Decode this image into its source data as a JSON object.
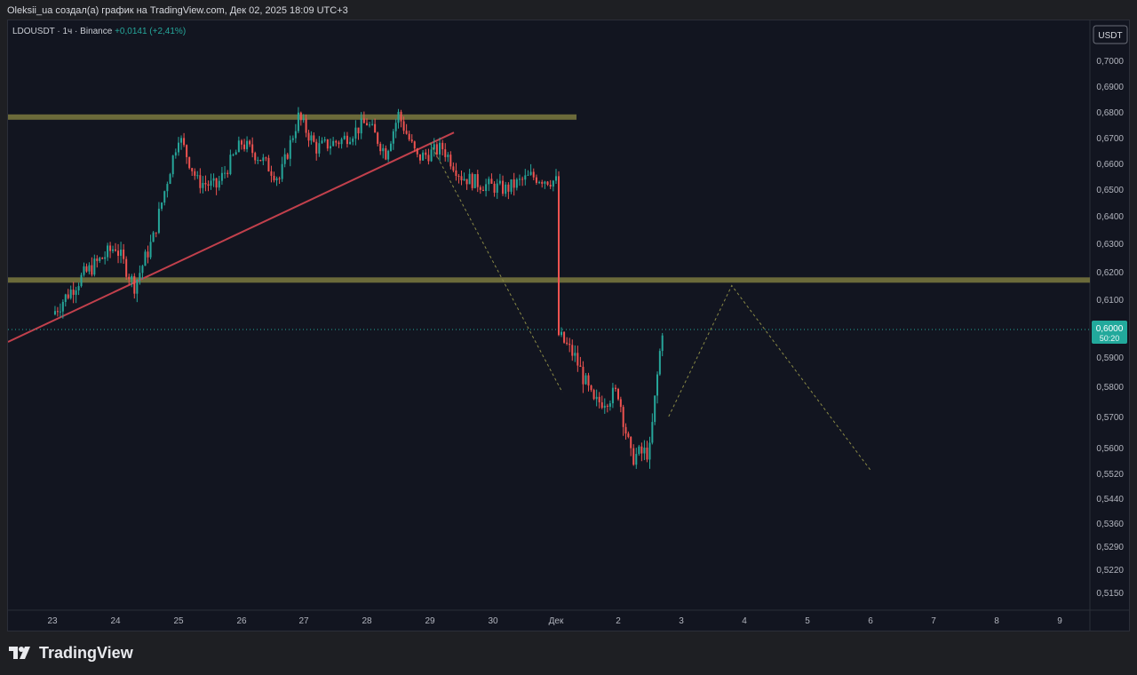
{
  "header": {
    "caption": "Oleksii_ua создал(а) график на TradingView.com, Дек 02, 2025 18:09 UTC+3"
  },
  "symbol": {
    "name": "LDOUSDT",
    "interval": "1ч",
    "exchange": "Binance",
    "change": "+0,0141 (+2,41%)"
  },
  "currency_button": "USDT",
  "price_badge": {
    "price": "0,6000",
    "countdown": "50:20"
  },
  "brand": "TradingView",
  "colors": {
    "up": "#26a69a",
    "down": "#ef5350",
    "level": "#6b6a3a",
    "trend": "#c2404c",
    "projection": "#8a8a46"
  },
  "chart_data": {
    "type": "candlestick",
    "title": "",
    "y_axis_labels": [
      "0,7000",
      "0,6900",
      "0,6800",
      "0,6700",
      "0,6600",
      "0,6500",
      "0,6400",
      "0,6300",
      "0,6200",
      "0,6100",
      "0,6000",
      "0,5900",
      "0,5800",
      "0,5700",
      "0,5600",
      "0,5520",
      "0,5440",
      "0,5360",
      "0,5290",
      "0,5220",
      "0,5150"
    ],
    "x_axis_labels": [
      "23",
      "24",
      "25",
      "26",
      "27",
      "28",
      "29",
      "30",
      "Дек",
      "2",
      "3",
      "4",
      "5",
      "6",
      "7",
      "8",
      "9"
    ],
    "close_path": [
      [
        "23",
        0.605
      ],
      [
        "23.5",
        0.619
      ],
      [
        "24",
        0.629
      ],
      [
        "24.3",
        0.615
      ],
      [
        "24.6",
        0.632
      ],
      [
        "25",
        0.671
      ],
      [
        "25.3",
        0.653
      ],
      [
        "25.6",
        0.651
      ],
      [
        "26",
        0.668
      ],
      [
        "26.3",
        0.662
      ],
      [
        "26.6",
        0.654
      ],
      [
        "26.9",
        0.678
      ],
      [
        "27.2",
        0.666
      ],
      [
        "27.6",
        0.669
      ],
      [
        "28",
        0.676
      ],
      [
        "28.3",
        0.664
      ],
      [
        "28.5",
        0.679
      ],
      [
        "28.8",
        0.662
      ],
      [
        "29.2",
        0.666
      ],
      [
        "29.5",
        0.655
      ],
      [
        "29.8",
        0.652
      ],
      [
        "30.2",
        0.65
      ],
      [
        "30.6",
        0.655
      ],
      [
        "Дек",
        0.653
      ],
      [
        "Дек+",
        0.598
      ],
      [
        "1.3",
        0.59
      ],
      [
        "1.6",
        0.574
      ],
      [
        "2",
        0.578
      ],
      [
        "2.2",
        0.557
      ],
      [
        "2.5",
        0.559
      ],
      [
        "2.7",
        0.6
      ]
    ],
    "levels": [
      {
        "name": "resistance",
        "value": 0.678
      },
      {
        "name": "support",
        "value": 0.617
      }
    ],
    "current_price": 0.6,
    "projection": [
      [
        "2.8",
        0.57
      ],
      [
        "3.8",
        0.615
      ],
      [
        "6",
        0.553
      ]
    ],
    "bearish_projection": [
      [
        "29",
        0.668
      ],
      [
        "1.1",
        0.578
      ]
    ]
  }
}
